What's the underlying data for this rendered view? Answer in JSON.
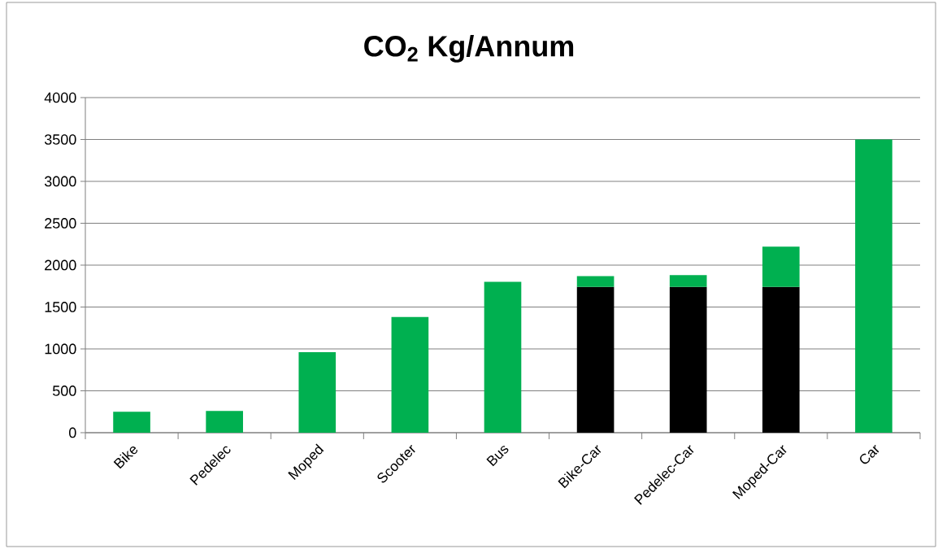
{
  "chart_data": {
    "type": "bar",
    "title": "CO$_{2}$ Kg/Annum",
    "stacked": true,
    "categories": [
      "Bike",
      "Pedelec",
      "Moped",
      "Scooter",
      "Bus",
      "Bike-Car",
      "Pedelec-Car",
      "Moped-Car",
      "Car"
    ],
    "series": [
      {
        "color": "#000000",
        "values": [
          null,
          null,
          null,
          null,
          null,
          1740,
          1740,
          1740,
          null
        ]
      },
      {
        "color": "#00b050",
        "values": [
          250,
          260,
          960,
          1380,
          1800,
          130,
          140,
          480,
          3500
        ]
      }
    ],
    "ylim": [
      0,
      4000
    ],
    "yticks": [
      0,
      500,
      1000,
      1500,
      2000,
      2500,
      3000,
      3500,
      4000
    ],
    "grid": "y"
  }
}
